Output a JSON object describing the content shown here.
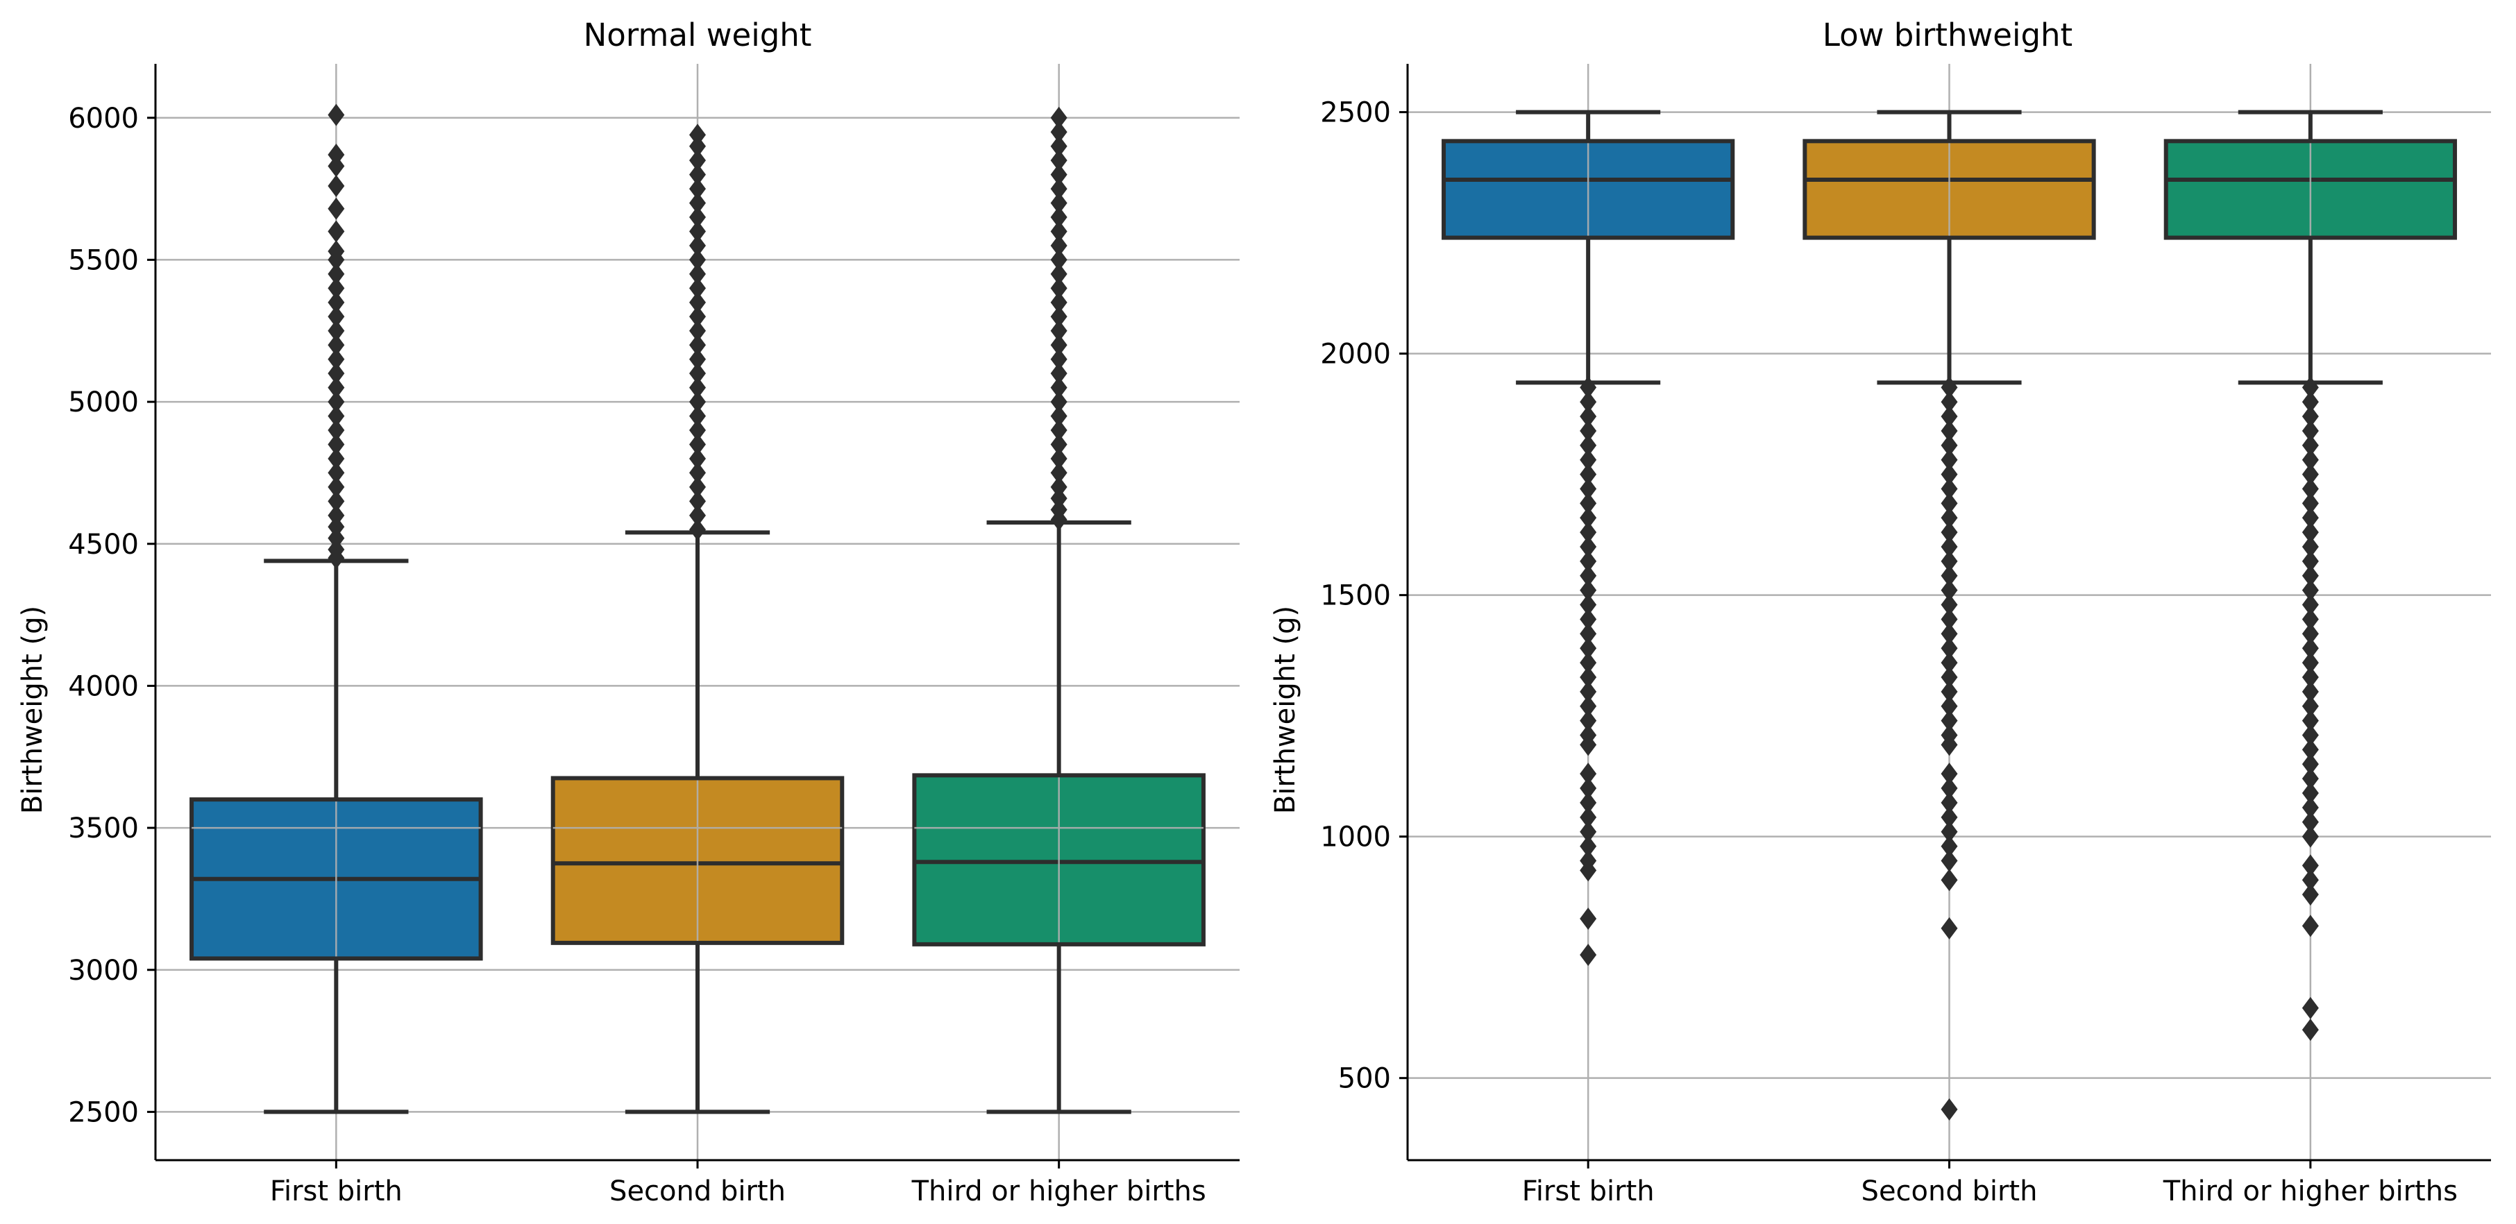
{
  "chart_data": [
    {
      "type": "box",
      "title": "Normal weight",
      "xlabel": "",
      "ylabel": "Birthweight (g)",
      "categories": [
        "First birth",
        "Second birth",
        "Third or higher births"
      ],
      "colors": [
        "#1a6fa3",
        "#c48a22",
        "#178f6a"
      ],
      "ylim": [
        2330,
        6190
      ],
      "yticks": [
        2500,
        3000,
        3500,
        4000,
        4500,
        5000,
        5500,
        6000
      ],
      "grid": true,
      "boxes": [
        {
          "whislo": 2500,
          "q1": 3040,
          "med": 3320,
          "q3": 3600,
          "whishi": 4440,
          "fliers": [
            4450,
            4480,
            4520,
            4560,
            4600,
            4650,
            4700,
            4750,
            4800,
            4850,
            4900,
            4950,
            5000,
            5050,
            5100,
            5150,
            5200,
            5250,
            5300,
            5350,
            5400,
            5450,
            5500,
            5530,
            5600,
            5680,
            5760,
            5830,
            5870,
            6010
          ]
        },
        {
          "whislo": 2500,
          "q1": 3095,
          "med": 3375,
          "q3": 3675,
          "whishi": 4540,
          "fliers": [
            4550,
            4600,
            4650,
            4700,
            4750,
            4800,
            4850,
            4900,
            4950,
            5000,
            5050,
            5100,
            5150,
            5200,
            5250,
            5300,
            5350,
            5400,
            5450,
            5500,
            5550,
            5600,
            5650,
            5700,
            5750,
            5800,
            5850,
            5900,
            5940
          ]
        },
        {
          "whislo": 2500,
          "q1": 3090,
          "med": 3380,
          "q3": 3685,
          "whishi": 4575,
          "fliers": [
            4585,
            4620,
            4660,
            4700,
            4750,
            4800,
            4850,
            4900,
            4950,
            5000,
            5050,
            5100,
            5150,
            5200,
            5250,
            5300,
            5350,
            5400,
            5450,
            5500,
            5550,
            5600,
            5650,
            5700,
            5750,
            5800,
            5850,
            5900,
            5950,
            6000
          ]
        }
      ]
    },
    {
      "type": "box",
      "title": "Low birthweight",
      "xlabel": "",
      "ylabel": "Birthweight (g)",
      "categories": [
        "First birth",
        "Second birth",
        "Third or higher births"
      ],
      "colors": [
        "#1a6fa3",
        "#c48a22",
        "#178f6a"
      ],
      "ylim": [
        330,
        2600
      ],
      "yticks": [
        500,
        1000,
        1500,
        2000,
        2500
      ],
      "grid": true,
      "boxes": [
        {
          "whislo": 1940,
          "q1": 2240,
          "med": 2360,
          "q3": 2440,
          "whishi": 2500,
          "fliers": [
            1930,
            1900,
            1870,
            1840,
            1810,
            1780,
            1750,
            1720,
            1690,
            1660,
            1630,
            1600,
            1570,
            1540,
            1510,
            1480,
            1450,
            1420,
            1390,
            1360,
            1330,
            1300,
            1270,
            1240,
            1210,
            1190,
            1130,
            1100,
            1070,
            1040,
            1010,
            980,
            950,
            930,
            830,
            755
          ]
        },
        {
          "whislo": 1940,
          "q1": 2240,
          "med": 2360,
          "q3": 2440,
          "whishi": 2500,
          "fliers": [
            1930,
            1900,
            1870,
            1840,
            1810,
            1780,
            1750,
            1720,
            1690,
            1660,
            1630,
            1600,
            1570,
            1540,
            1510,
            1480,
            1450,
            1420,
            1390,
            1360,
            1330,
            1300,
            1270,
            1240,
            1210,
            1190,
            1130,
            1100,
            1070,
            1040,
            1010,
            980,
            950,
            910,
            810,
            435
          ]
        },
        {
          "whislo": 1940,
          "q1": 2240,
          "med": 2360,
          "q3": 2440,
          "whishi": 2500,
          "fliers": [
            1930,
            1900,
            1870,
            1840,
            1810,
            1780,
            1750,
            1720,
            1690,
            1660,
            1630,
            1600,
            1570,
            1540,
            1510,
            1480,
            1450,
            1420,
            1390,
            1360,
            1330,
            1300,
            1270,
            1240,
            1210,
            1180,
            1150,
            1120,
            1090,
            1060,
            1030,
            1000,
            940,
            910,
            880,
            815,
            645,
            600
          ]
        }
      ]
    }
  ]
}
